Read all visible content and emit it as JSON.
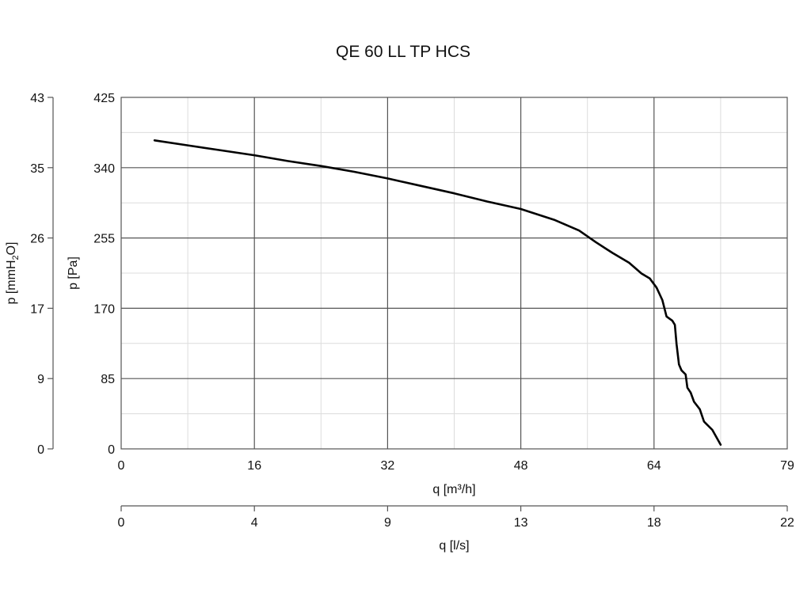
{
  "chart_data": {
    "type": "line",
    "title": "QE 60 LL TP HCS",
    "grid": true,
    "x_axes": [
      {
        "label": "q [m³/h]",
        "ticks": [
          "0",
          "16",
          "32",
          "48",
          "64",
          "79"
        ],
        "range": [
          0,
          80
        ]
      },
      {
        "label": "q [l/s]",
        "ticks": [
          "0",
          "4",
          "9",
          "13",
          "18",
          "22"
        ],
        "range": [
          0,
          22.2
        ]
      }
    ],
    "y_axes": [
      {
        "label": "p [Pa]",
        "ticks": [
          "0",
          "85",
          "170",
          "255",
          "340",
          "425"
        ],
        "range": [
          0,
          425
        ]
      },
      {
        "label_parts": [
          "p [mmH",
          "2",
          "O]"
        ],
        "ticks": [
          "0",
          "9",
          "17",
          "26",
          "35",
          "43"
        ],
        "range": [
          0,
          43.3
        ]
      }
    ],
    "series": [
      {
        "x": [
          4,
          8,
          12,
          16,
          20,
          24,
          28,
          32,
          36,
          40,
          44,
          48,
          52,
          55,
          57,
          59,
          61,
          62.5,
          63.5,
          64.3,
          65,
          65.5,
          66.2,
          66.5,
          66.7,
          67,
          67.3,
          67.8,
          68,
          68.4,
          68.8,
          69.5,
          70,
          71,
          72
        ],
        "y": [
          373,
          367,
          361,
          355,
          348,
          342,
          335,
          327,
          318,
          309,
          299,
          290,
          277,
          264,
          250,
          237,
          225,
          212,
          206,
          195,
          180,
          160,
          155,
          150,
          127,
          102,
          95,
          90,
          74,
          68,
          57,
          48,
          33,
          23,
          5
        ]
      }
    ]
  }
}
